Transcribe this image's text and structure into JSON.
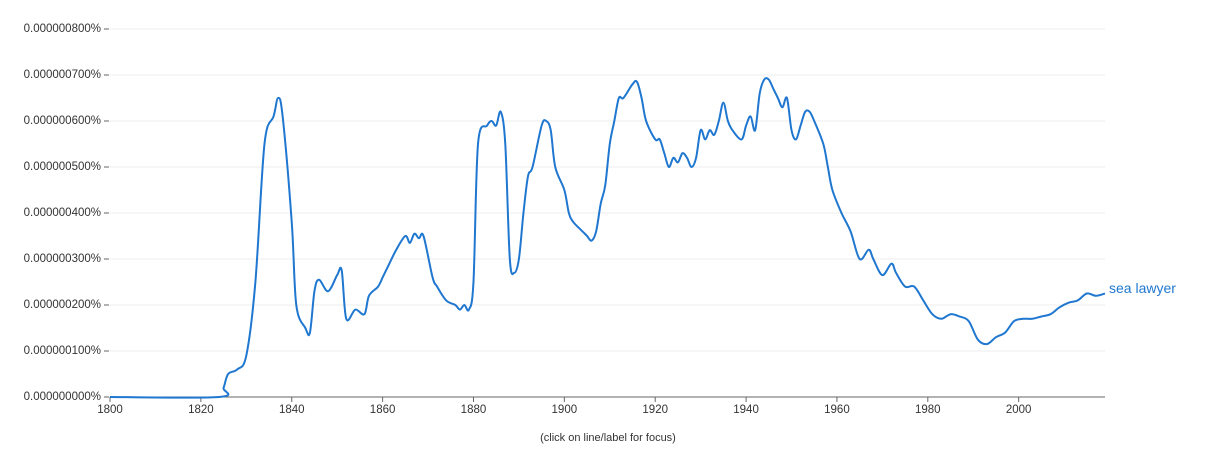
{
  "chart_data": {
    "type": "line",
    "annotation": "(click on line/label for focus)",
    "xlim": [
      1800,
      2019
    ],
    "xticks": [
      1800,
      1820,
      1840,
      1860,
      1880,
      1900,
      1920,
      1940,
      1960,
      1980,
      2000
    ],
    "ylim": [
      0,
      8e-07
    ],
    "yticks": [
      {
        "value": 0,
        "label": "0.000000000%"
      },
      {
        "value": 1e-07,
        "label": "0.000000100%"
      },
      {
        "value": 2e-07,
        "label": "0.000000200%"
      },
      {
        "value": 3e-07,
        "label": "0.000000300%"
      },
      {
        "value": 4e-07,
        "label": "0.000000400%"
      },
      {
        "value": 5e-07,
        "label": "0.000000500%"
      },
      {
        "value": 6e-07,
        "label": "0.000000600%"
      },
      {
        "value": 7e-07,
        "label": "0.000000700%"
      },
      {
        "value": 8e-07,
        "label": "0.000000800%"
      }
    ],
    "grid": true,
    "x": [
      1800,
      1824,
      1825,
      1826,
      1828,
      1830,
      1832,
      1834,
      1836,
      1837,
      1838,
      1840,
      1841,
      1843,
      1844,
      1845,
      1846,
      1848,
      1850,
      1851,
      1852,
      1854,
      1856,
      1857,
      1859,
      1860,
      1861,
      1863,
      1865,
      1866,
      1867,
      1868,
      1869,
      1871,
      1872,
      1874,
      1876,
      1877,
      1878,
      1879,
      1880,
      1881,
      1883,
      1884,
      1885,
      1886,
      1887,
      1888,
      1889,
      1890,
      1891,
      1892,
      1893,
      1895,
      1896,
      1897,
      1898,
      1900,
      1901,
      1902,
      1904,
      1905,
      1906,
      1907,
      1908,
      1909,
      1910,
      1911,
      1912,
      1913,
      1915,
      1916,
      1917,
      1918,
      1920,
      1921,
      1922,
      1923,
      1924,
      1925,
      1926,
      1927,
      1928,
      1929,
      1930,
      1931,
      1932,
      1933,
      1934,
      1935,
      1936,
      1937,
      1939,
      1940,
      1941,
      1942,
      1943,
      1944,
      1945,
      1946,
      1947,
      1948,
      1949,
      1950,
      1951,
      1952,
      1953,
      1954,
      1955,
      1957,
      1958,
      1959,
      1961,
      1963,
      1965,
      1967,
      1968,
      1970,
      1972,
      1973,
      1975,
      1977,
      1979,
      1981,
      1983,
      1985,
      1987,
      1989,
      1991,
      1993,
      1995,
      1997,
      1999,
      2001,
      2003,
      2005,
      2007,
      2009,
      2011,
      2013,
      2015,
      2017,
      2019
    ],
    "series": [
      {
        "name": "sea lawyer",
        "color": "#1f77d0",
        "values": [
          0,
          0,
          2e-08,
          5e-08,
          6e-08,
          9e-08,
          2.5e-07,
          5.5e-07,
          6.1e-07,
          6.5e-07,
          6.1e-07,
          3.8e-07,
          2e-07,
          1.5e-07,
          1.4e-07,
          2.3e-07,
          2.55e-07,
          2.3e-07,
          2.65e-07,
          2.75e-07,
          1.7e-07,
          1.9e-07,
          1.8e-07,
          2.2e-07,
          2.4e-07,
          2.6e-07,
          2.8e-07,
          3.2e-07,
          3.5e-07,
          3.35e-07,
          3.55e-07,
          3.45e-07,
          3.5e-07,
          2.6e-07,
          2.4e-07,
          2.1e-07,
          2e-07,
          1.9e-07,
          2e-07,
          1.9e-07,
          2.5e-07,
          5.5e-07,
          5.9e-07,
          6e-07,
          5.9e-07,
          6.2e-07,
          5.5e-07,
          3e-07,
          2.7e-07,
          3e-07,
          4e-07,
          4.8e-07,
          5e-07,
          5.9e-07,
          6e-07,
          5.8e-07,
          5e-07,
          4.5e-07,
          4e-07,
          3.8e-07,
          3.6e-07,
          3.5e-07,
          3.4e-07,
          3.6e-07,
          4.2e-07,
          4.6e-07,
          5.5e-07,
          6e-07,
          6.5e-07,
          6.5e-07,
          6.8e-07,
          6.85e-07,
          6.5e-07,
          6e-07,
          5.6e-07,
          5.6e-07,
          5.3e-07,
          5e-07,
          5.2e-07,
          5.1e-07,
          5.3e-07,
          5.2e-07,
          5e-07,
          5.2e-07,
          5.8e-07,
          5.6e-07,
          5.8e-07,
          5.7e-07,
          6e-07,
          6.4e-07,
          6e-07,
          5.8e-07,
          5.6e-07,
          5.9e-07,
          6.1e-07,
          5.8e-07,
          6.6e-07,
          6.9e-07,
          6.9e-07,
          6.7e-07,
          6.5e-07,
          6.3e-07,
          6.5e-07,
          5.8e-07,
          5.6e-07,
          5.9e-07,
          6.2e-07,
          6.2e-07,
          6e-07,
          5.5e-07,
          5e-07,
          4.5e-07,
          4e-07,
          3.6e-07,
          3e-07,
          3.2e-07,
          3e-07,
          2.65e-07,
          2.9e-07,
          2.7e-07,
          2.4e-07,
          2.4e-07,
          2.1e-07,
          1.8e-07,
          1.7e-07,
          1.8e-07,
          1.75e-07,
          1.65e-07,
          1.25e-07,
          1.15e-07,
          1.3e-07,
          1.4e-07,
          1.65e-07,
          1.7e-07,
          1.7e-07,
          1.75e-07,
          1.8e-07,
          1.95e-07,
          2.05e-07,
          2.1e-07,
          2.25e-07,
          2.2e-07,
          2.25e-07
        ]
      }
    ]
  }
}
